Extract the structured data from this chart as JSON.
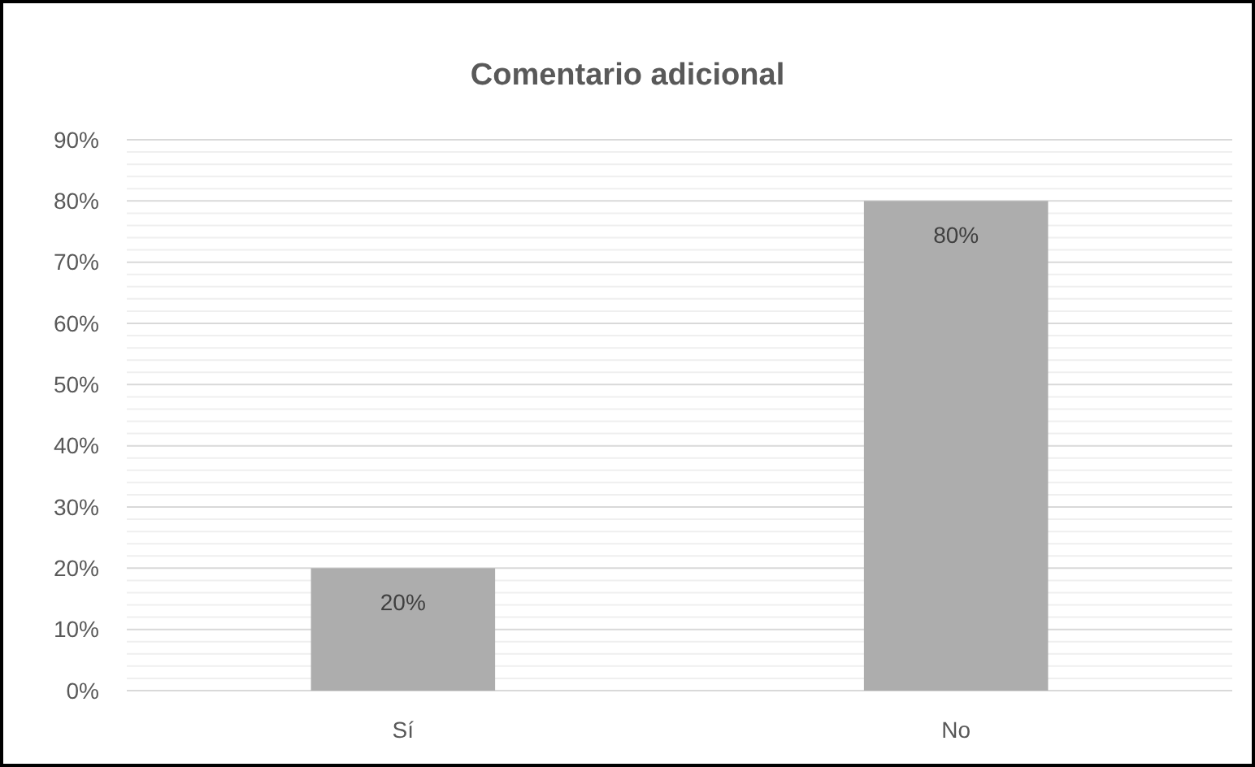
{
  "chart_data": {
    "type": "bar",
    "title": "Comentario adicional",
    "categories": [
      "Sí",
      "No"
    ],
    "values": [
      20,
      80
    ],
    "value_labels": [
      "20%",
      "80%"
    ],
    "color": "#adadad",
    "ylim": [
      0,
      90
    ],
    "yticks": [
      {
        "value": 0,
        "label": "0%"
      },
      {
        "value": 2,
        "label": null
      },
      {
        "value": 4,
        "label": null
      },
      {
        "value": 6,
        "label": null
      },
      {
        "value": 8,
        "label": null
      },
      {
        "value": 10,
        "label": "10%"
      },
      {
        "value": 12,
        "label": null
      },
      {
        "value": 14,
        "label": null
      },
      {
        "value": 16,
        "label": null
      },
      {
        "value": 18,
        "label": null
      },
      {
        "value": 20,
        "label": "20%"
      },
      {
        "value": 22,
        "label": null
      },
      {
        "value": 24,
        "label": null
      },
      {
        "value": 26,
        "label": null
      },
      {
        "value": 28,
        "label": null
      },
      {
        "value": 30,
        "label": "30%"
      },
      {
        "value": 32,
        "label": null
      },
      {
        "value": 34,
        "label": null
      },
      {
        "value": 36,
        "label": null
      },
      {
        "value": 38,
        "label": null
      },
      {
        "value": 40,
        "label": "40%"
      },
      {
        "value": 42,
        "label": null
      },
      {
        "value": 44,
        "label": null
      },
      {
        "value": 46,
        "label": null
      },
      {
        "value": 48,
        "label": null
      },
      {
        "value": 50,
        "label": "50%"
      },
      {
        "value": 52,
        "label": null
      },
      {
        "value": 54,
        "label": null
      },
      {
        "value": 56,
        "label": null
      },
      {
        "value": 58,
        "label": null
      },
      {
        "value": 60,
        "label": "60%"
      },
      {
        "value": 62,
        "label": null
      },
      {
        "value": 64,
        "label": null
      },
      {
        "value": 66,
        "label": null
      },
      {
        "value": 68,
        "label": null
      },
      {
        "value": 70,
        "label": "70%"
      },
      {
        "value": 72,
        "label": null
      },
      {
        "value": 74,
        "label": null
      },
      {
        "value": 76,
        "label": null
      },
      {
        "value": 78,
        "label": null
      },
      {
        "value": 80,
        "label": "80%"
      },
      {
        "value": 82,
        "label": null
      },
      {
        "value": 84,
        "label": null
      },
      {
        "value": 86,
        "label": null
      },
      {
        "value": 88,
        "label": null
      },
      {
        "value": 90,
        "label": "90%"
      }
    ],
    "grid": "y"
  }
}
